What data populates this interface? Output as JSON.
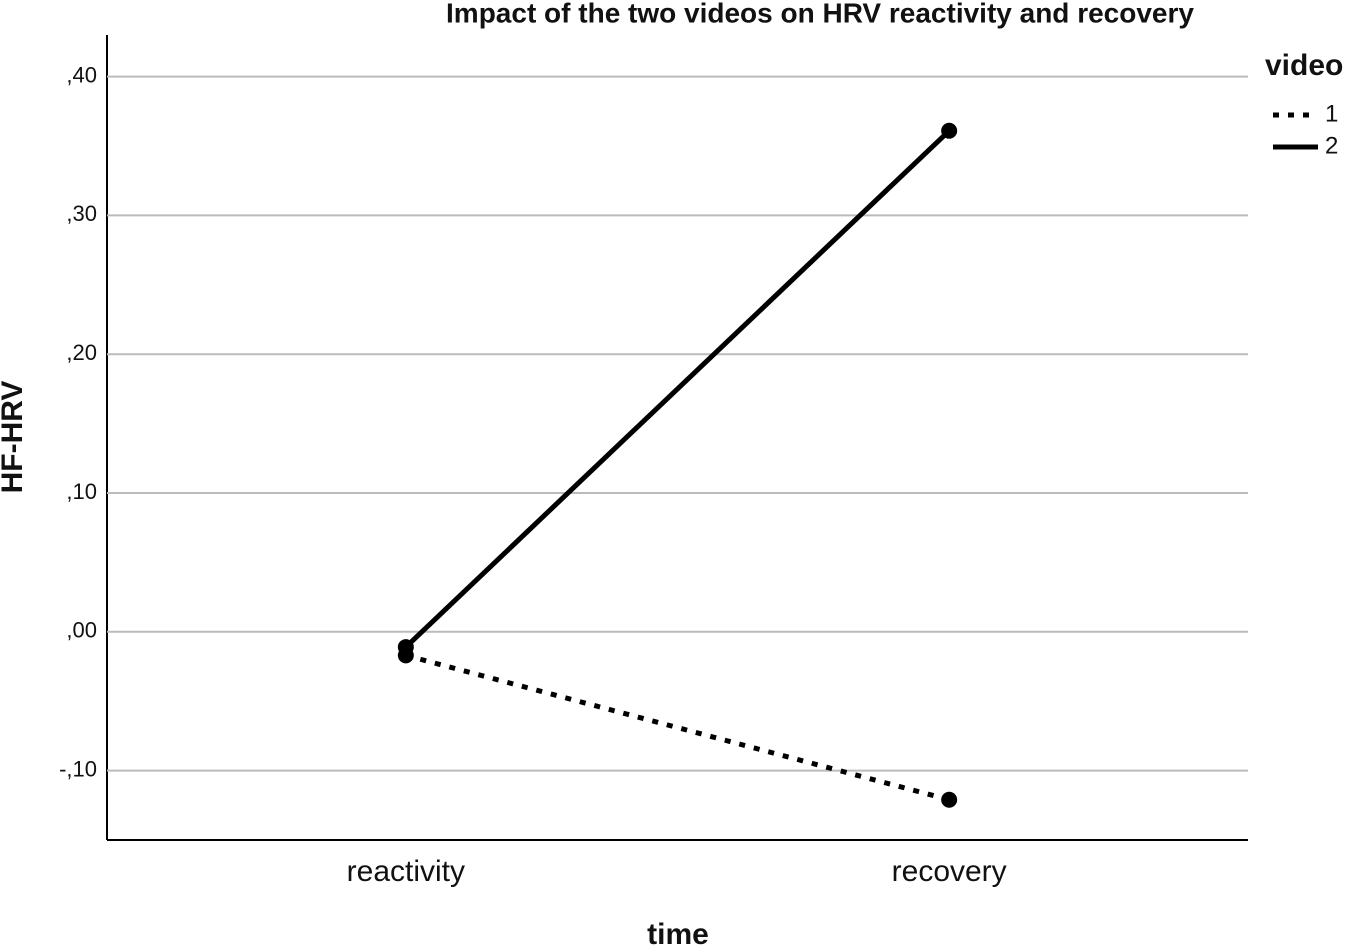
{
  "chart_data": {
    "type": "line",
    "title": "Impact of the two videos on HRV reactivity and recovery",
    "x_label": "time",
    "y_label": "HF-HRV",
    "categories": [
      "reactivity",
      "recovery"
    ],
    "legend_title": "video",
    "legend": "right",
    "grid": true,
    "ylim": [
      -0.15,
      0.43
    ],
    "yticks": [
      {
        "value": -0.1,
        "label": "-,10"
      },
      {
        "value": 0,
        "label": ",00"
      },
      {
        "value": 0.1,
        "label": ",10"
      },
      {
        "value": 0.2,
        "label": ",20"
      },
      {
        "value": 0.3,
        "label": ",30"
      },
      {
        "value": 0.4,
        "label": ",40"
      }
    ],
    "series": [
      {
        "name": "1",
        "color": "#000000",
        "line_style": "dotted",
        "values": [
          -0.017,
          -0.121
        ]
      },
      {
        "name": "2",
        "color": "#000000",
        "line_style": "solid",
        "values": [
          -0.011,
          0.361
        ]
      }
    ]
  }
}
